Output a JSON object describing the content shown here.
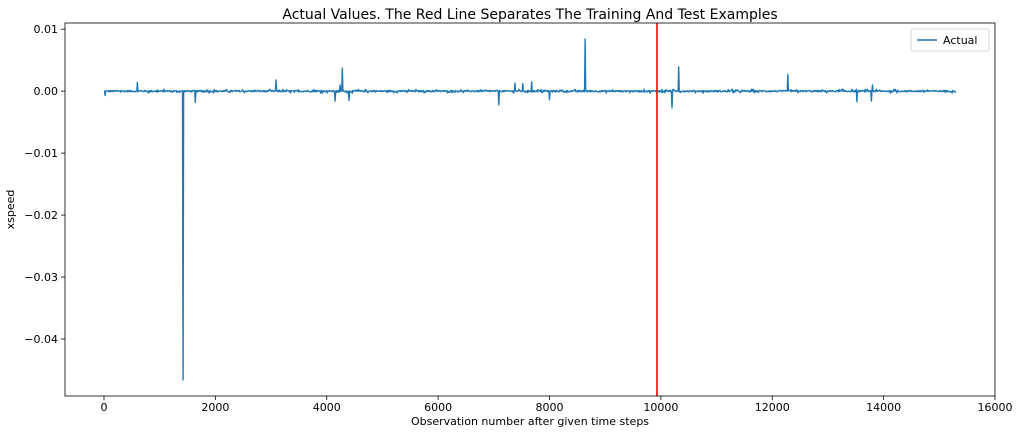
{
  "chart_data": {
    "type": "line",
    "title": "Actual Values. The Red Line Separates The Training And Test Examples",
    "xlabel": "Observation number after given time steps",
    "ylabel": "xspeed",
    "xlim": [
      -700,
      16000
    ],
    "ylim": [
      -0.0492,
      0.011
    ],
    "xticks": [
      0,
      2000,
      4000,
      6000,
      8000,
      10000,
      12000,
      14000,
      16000
    ],
    "xtick_labels": [
      "0",
      "2000",
      "4000",
      "6000",
      "8000",
      "10000",
      "12000",
      "14000",
      "16000"
    ],
    "yticks": [
      0.01,
      0.0,
      -0.01,
      -0.02,
      -0.03,
      -0.04
    ],
    "ytick_labels": [
      "0.01",
      "0.00",
      "−0.01",
      "−0.02",
      "−0.03",
      "−0.04"
    ],
    "grid": false,
    "legend": {
      "placement": "top-right",
      "entries": [
        "Actual"
      ]
    },
    "series": [
      {
        "name": "Actual",
        "color": "#1f77b4",
        "x_range": [
          0,
          15300
        ],
        "baseline": 0.0,
        "noise_amplitude": 0.0002,
        "spikes": [
          {
            "x": 20,
            "y": -0.0007
          },
          {
            "x": 600,
            "y": 0.0014
          },
          {
            "x": 1420,
            "y": -0.0466
          },
          {
            "x": 1640,
            "y": -0.0018
          },
          {
            "x": 3090,
            "y": 0.0018
          },
          {
            "x": 4150,
            "y": -0.0016
          },
          {
            "x": 4240,
            "y": 0.001
          },
          {
            "x": 4280,
            "y": 0.0037
          },
          {
            "x": 4400,
            "y": -0.0015
          },
          {
            "x": 7090,
            "y": -0.0022
          },
          {
            "x": 7380,
            "y": 0.0013
          },
          {
            "x": 7520,
            "y": 0.0012
          },
          {
            "x": 7680,
            "y": 0.0015
          },
          {
            "x": 8000,
            "y": -0.0014
          },
          {
            "x": 8640,
            "y": 0.0084
          },
          {
            "x": 10200,
            "y": -0.0027
          },
          {
            "x": 10320,
            "y": 0.0039
          },
          {
            "x": 12280,
            "y": 0.0027
          },
          {
            "x": 13520,
            "y": -0.0017
          },
          {
            "x": 13780,
            "y": -0.0016
          },
          {
            "x": 13800,
            "y": 0.001
          }
        ]
      }
    ],
    "separator": {
      "x": 9930,
      "color": "#ff0000"
    }
  }
}
